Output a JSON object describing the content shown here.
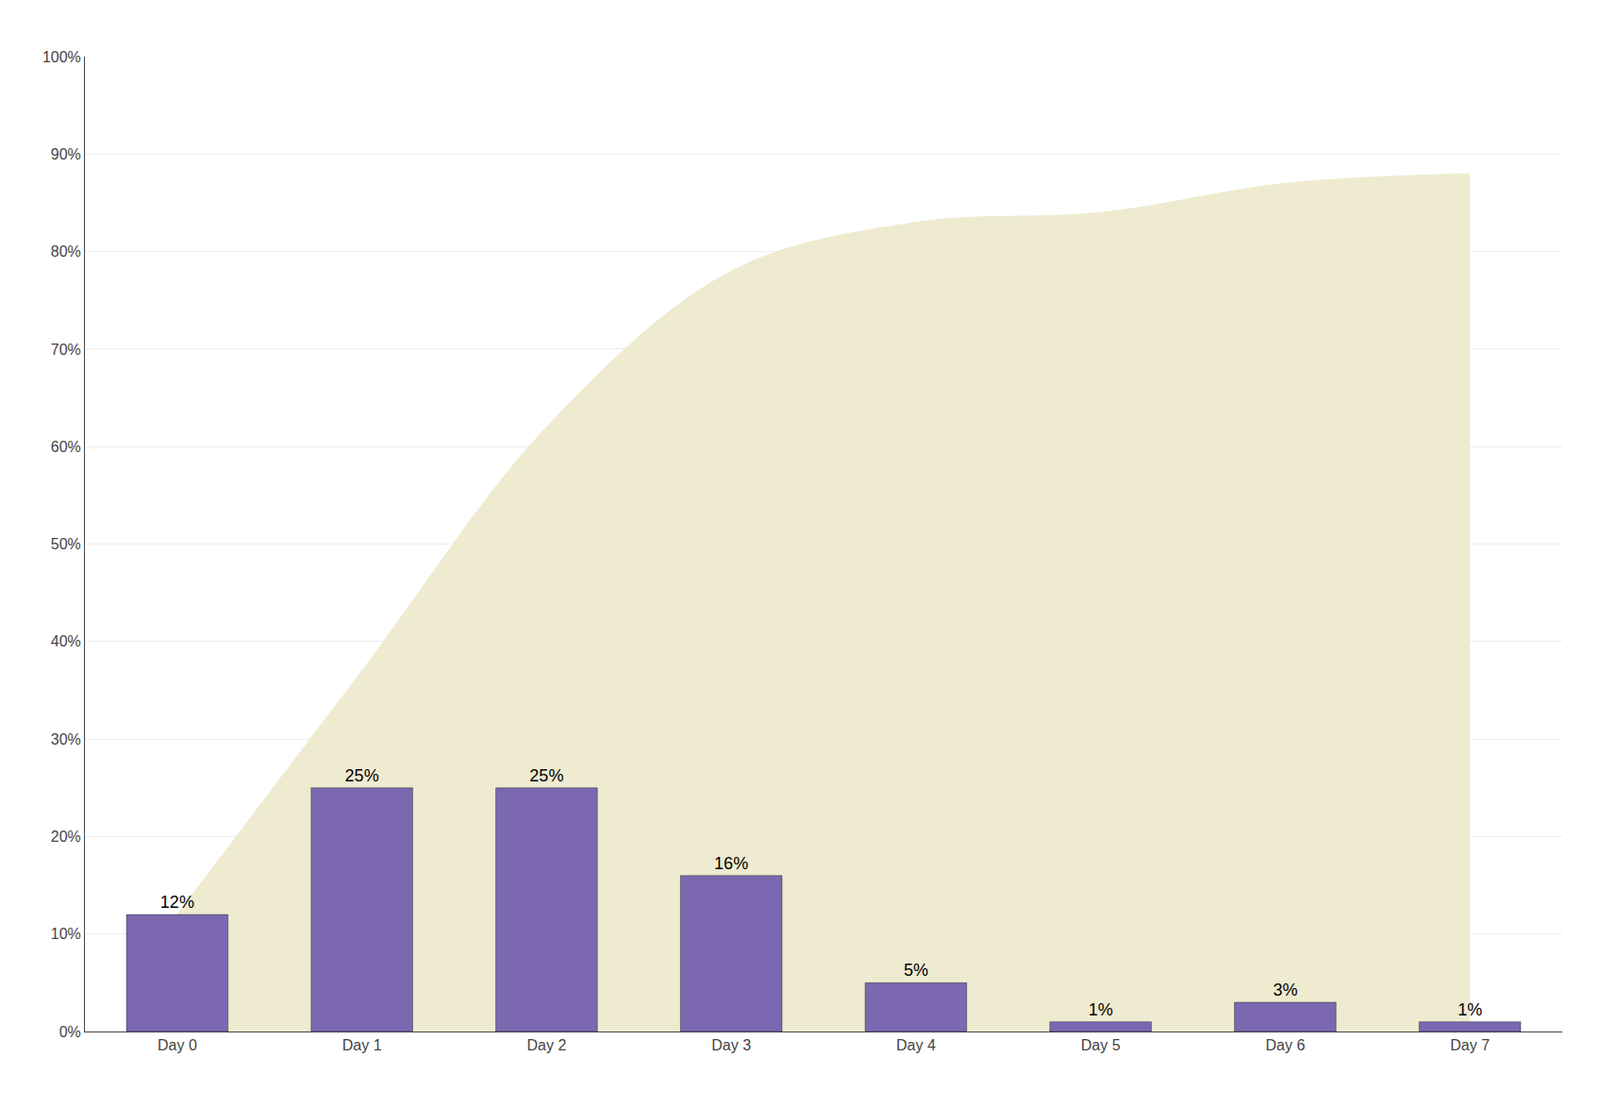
{
  "chart_data": {
    "type": "bar",
    "categories": [
      "Day 0",
      "Day 1",
      "Day 2",
      "Day 3",
      "Day 4",
      "Day 5",
      "Day 6",
      "Day 7"
    ],
    "series": [
      {
        "type": "area",
        "color": "#EEEBD0",
        "values": [
          12,
          37,
          62,
          78,
          83,
          84,
          87,
          88
        ]
      },
      {
        "type": "bar",
        "color": "#7B68B0",
        "values": [
          12,
          25,
          25,
          16,
          5,
          1,
          3,
          1
        ],
        "value_labels": [
          "12%",
          "25%",
          "25%",
          "16%",
          "5%",
          "1%",
          "3%",
          "1%"
        ]
      }
    ],
    "data_labels": true,
    "ylim": [
      0,
      100
    ],
    "yticks": [
      {
        "value": 0,
        "label": "0%"
      },
      {
        "value": 10,
        "label": "10%"
      },
      {
        "value": 20,
        "label": "20%"
      },
      {
        "value": 30,
        "label": "30%"
      },
      {
        "value": 40,
        "label": "40%"
      },
      {
        "value": 50,
        "label": "50%"
      },
      {
        "value": 60,
        "label": "60%"
      },
      {
        "value": 70,
        "label": "70%"
      },
      {
        "value": 80,
        "label": "80%"
      },
      {
        "value": 90,
        "label": "90%"
      },
      {
        "value": 100,
        "label": "100%"
      }
    ],
    "grid": true
  }
}
